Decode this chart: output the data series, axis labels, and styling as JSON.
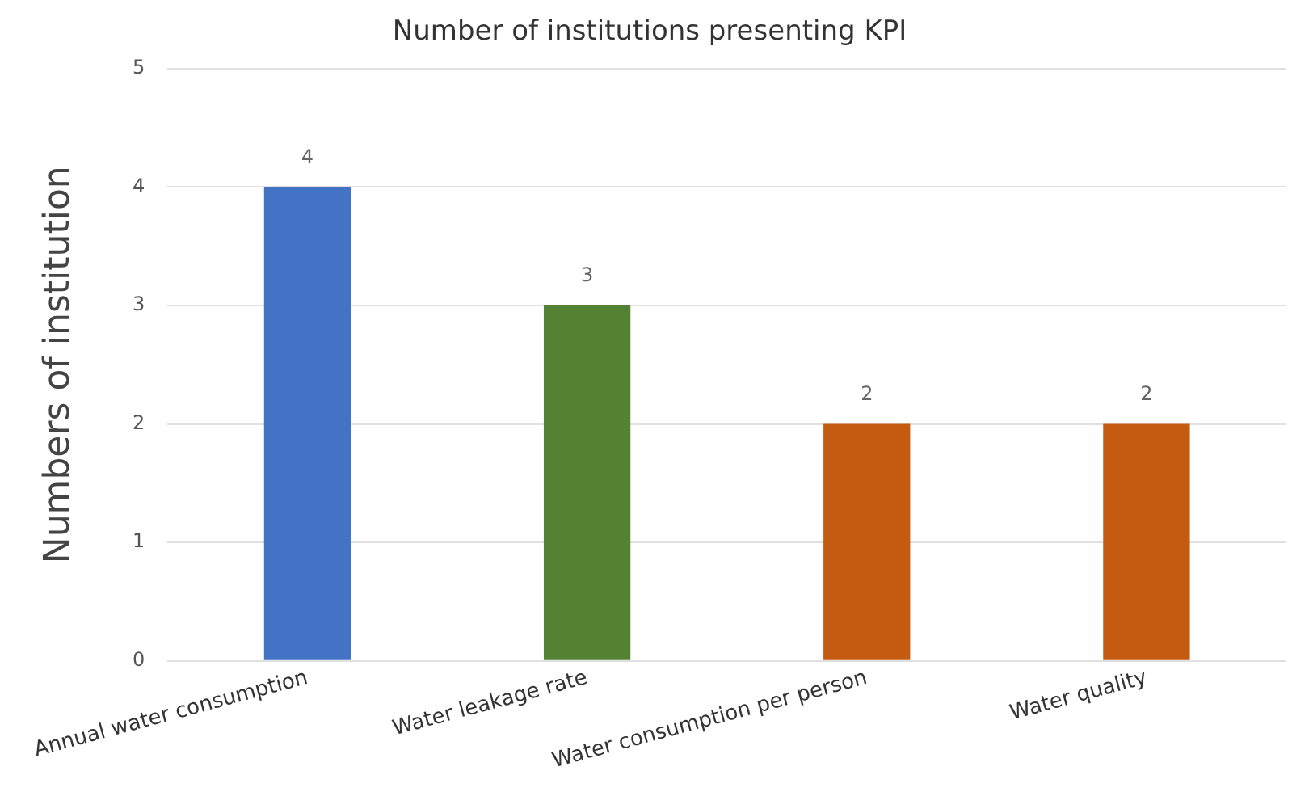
{
  "chart_data": {
    "type": "bar",
    "title": "Number of institutions presenting KPI",
    "ylabel": "Numbers of institution",
    "categories": [
      "Annual water consumption",
      "Water leakage rate",
      "Water consumption per person",
      "Water quality"
    ],
    "values": [
      4,
      3,
      2,
      2
    ],
    "colors": [
      "#4472c4",
      "#548235",
      "#c55a11",
      "#c55a11"
    ],
    "ylim": [
      0,
      5
    ],
    "yticks": [
      0,
      1,
      2,
      3,
      4,
      5
    ],
    "grid": "y",
    "data_labels": true
  }
}
